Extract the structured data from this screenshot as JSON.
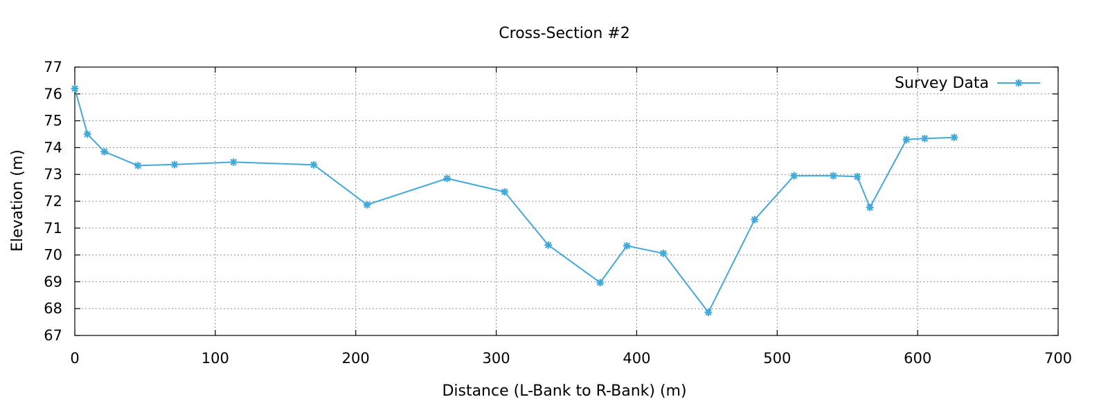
{
  "chart_data": {
    "type": "line",
    "title": "Cross-Section #2",
    "xlabel": "Distance (L-Bank to R-Bank) (m)",
    "ylabel": "Elevation (m)",
    "xlim": [
      0,
      700
    ],
    "ylim": [
      67,
      77
    ],
    "xticks": [
      "0",
      "100",
      "200",
      "300",
      "400",
      "500",
      "600",
      "700"
    ],
    "yticks": [
      "67",
      "68",
      "69",
      "70",
      "71",
      "72",
      "73",
      "74",
      "75",
      "76",
      "77"
    ],
    "grid": true,
    "legend_position": "top-right",
    "colors": {
      "series": "#3fa9dc",
      "grid": "#8f8f8f",
      "axis": "#000000"
    },
    "series": [
      {
        "name": "Survey Data",
        "marker": "asterisk",
        "x": [
          0,
          9,
          21,
          45,
          71,
          113,
          170,
          208,
          265,
          306,
          337,
          374,
          393,
          419,
          451,
          484,
          512,
          540,
          557,
          566,
          592,
          605,
          626
        ],
        "y": [
          76.2,
          74.5,
          73.85,
          73.33,
          73.37,
          73.46,
          73.36,
          71.87,
          72.85,
          72.35,
          70.37,
          68.97,
          70.34,
          70.06,
          67.86,
          71.32,
          72.95,
          72.95,
          72.92,
          71.77,
          74.3,
          74.34,
          74.38
        ]
      }
    ]
  }
}
